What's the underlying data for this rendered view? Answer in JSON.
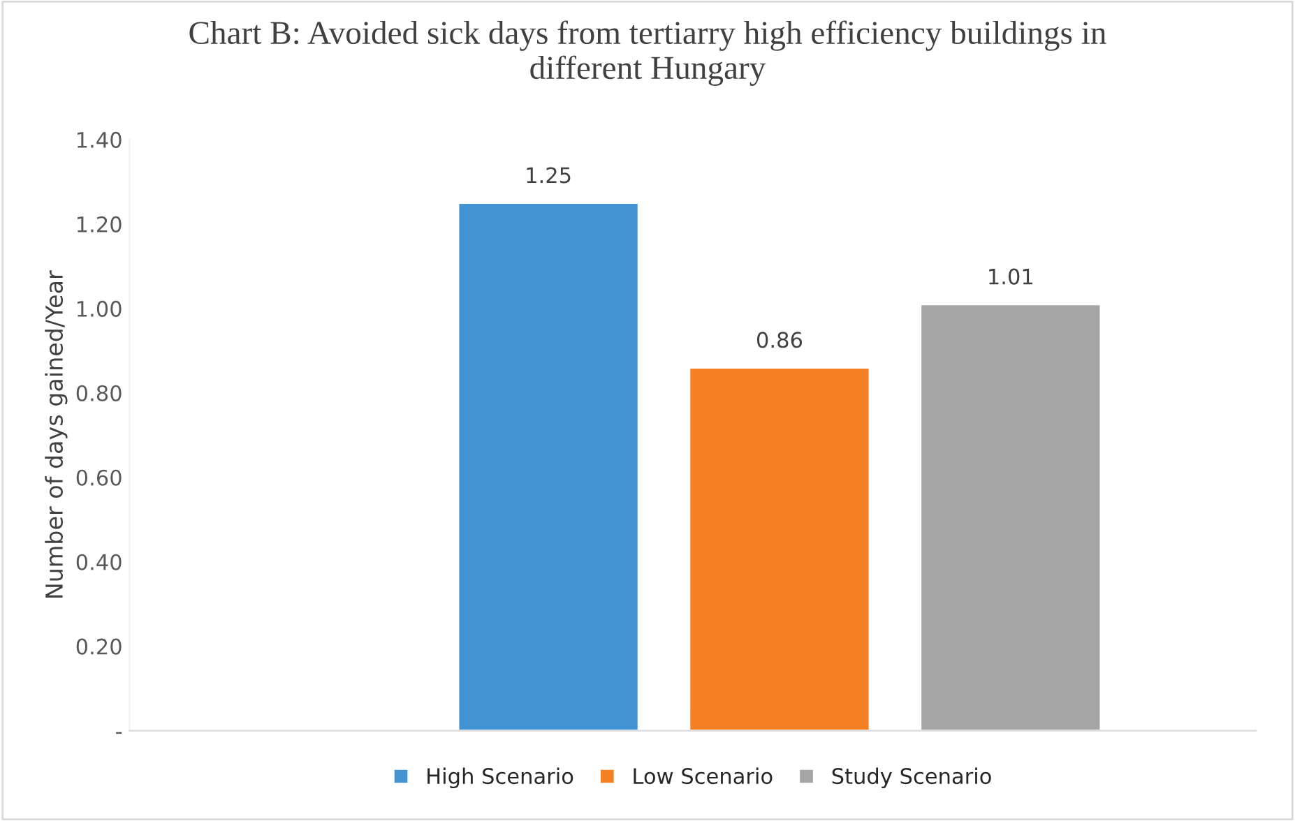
{
  "chart_data": {
    "type": "bar",
    "title": "Chart B: Avoided sick days from tertiarry high efficiency buildings in\ndifferent Hungary",
    "ylabel": "Number of days gained/Year",
    "categories": [
      null
    ],
    "series": [
      {
        "name": "High Scenario",
        "color": "#4393d3",
        "values": [
          1.25
        ]
      },
      {
        "name": "Low Scenario",
        "color": "#f58024",
        "values": [
          0.86
        ]
      },
      {
        "name": "Study Scenario",
        "color": "#a5a5a5",
        "values": [
          1.01
        ]
      }
    ],
    "ylim": [
      0,
      1.4
    ],
    "yticks": [
      {
        "value": 0,
        "label": "-"
      },
      {
        "value": 0.2,
        "label": "0.20"
      },
      {
        "value": 0.4,
        "label": "0.40"
      },
      {
        "value": 0.6,
        "label": "0.60"
      },
      {
        "value": 0.8,
        "label": "0.80"
      },
      {
        "value": 1.0,
        "label": "1.00"
      },
      {
        "value": 1.2,
        "label": "1.20"
      },
      {
        "value": 1.4,
        "label": "1.40"
      }
    ],
    "data_labels": true,
    "legend": "bottom",
    "grid": false,
    "tick_labels": "y"
  }
}
